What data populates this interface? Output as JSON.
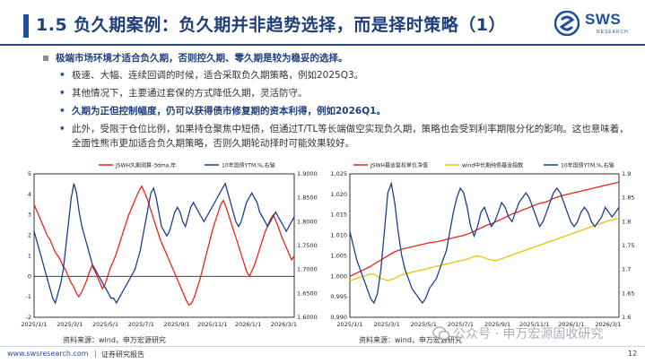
{
  "header": {
    "title": "1.5 负久期案例：负久期并非趋势选择，而是择时策略（1）",
    "logo_text": "SWS",
    "logo_sub": "RESEARCH"
  },
  "bullets": {
    "main": "极端市场环境才适合负久期，否则控久期、零久期是较为稳妥的选择。",
    "sub1": "极速、大幅、连续回调的时候，适合采取负久期策略，例如2025Q3。",
    "sub2": "其他情况下，主要通过套保的方式降低久期，灵活防守。",
    "sub3": "久期为正但控制幅度，仍可以获得债市修复期的资本利得，例如2026Q1。",
    "sub4": "此外，受限于仓位比例，如果持仓聚焦中短债，但通过T/TL等长端做空实现负久期，策略也会受到利率期限分化的影响。这也意味着，全面性熊市更加适合负久期策略，否则久期轮动择时可能效果较好。"
  },
  "chart_left": {
    "source": "资料来源：wind，申万宏源研究",
    "chart_data": {
      "type": "line",
      "title": "",
      "legend": [
        "JSWH久期测算-3dma,年",
        "10年国债YTM,%,右轴"
      ],
      "legend_placement": "top",
      "x_ticks": [
        "2025/1/1",
        "2025/3/1",
        "2025/5/1",
        "2025/7/1",
        "2025/9/1",
        "2025/11/1",
        "2026/1/1",
        "2026/3/1"
      ],
      "y_left": {
        "ticks": [
          "-2",
          "-1",
          "0",
          "1",
          "2",
          "3",
          "4",
          "5"
        ],
        "lim": [
          -2,
          5
        ]
      },
      "y_right": {
        "ticks": [
          "1.6000",
          "1.6500",
          "1.7000",
          "1.7500",
          "1.8000",
          "1.8500",
          "1.9000"
        ],
        "lim": [
          1.6,
          1.9
        ]
      },
      "series": [
        {
          "name": "JSWH久期测算-3dma,年",
          "axis": "left",
          "color": "#e8261c",
          "values": [
            3.5,
            3.2,
            2.9,
            2.6,
            2.3,
            2.0,
            1.8,
            1.5,
            1.2,
            1.0,
            0.8,
            0.5,
            0.3,
            0.0,
            -0.3,
            -0.5,
            -0.8,
            -1.0,
            -0.8,
            -0.5,
            -0.2,
            0.2,
            0.5,
            0.3,
            0.0,
            -0.3,
            -0.6,
            -0.4,
            0.0,
            0.4,
            0.7,
            1.0,
            1.4,
            1.8,
            2.2,
            2.6,
            3.0,
            3.3,
            3.6,
            3.9,
            4.2,
            4.4,
            4.1,
            3.8,
            3.4,
            3.0,
            2.6,
            2.2,
            1.8,
            1.5,
            1.2,
            0.9,
            0.6,
            0.3,
            0.0,
            -0.3,
            -0.6,
            -0.9,
            -1.2,
            -1.4,
            -1.3,
            -1.0,
            -0.6,
            -0.2,
            0.3,
            0.8,
            1.3,
            1.8,
            2.3,
            2.7,
            3.1,
            3.5,
            3.7,
            3.4,
            3.0,
            2.6,
            2.2,
            1.8,
            1.4,
            1.0,
            0.6,
            0.2,
            0.0,
            0.3,
            0.6,
            1.0,
            1.4,
            1.8,
            2.2,
            2.5,
            2.8,
            3.0,
            2.7,
            2.4,
            2.0,
            1.7,
            1.4,
            1.1,
            0.8,
            1.0
          ]
        },
        {
          "name": "10年国债YTM,%,右轴",
          "axis": "right",
          "color": "#1f3f8c",
          "values": [
            1.78,
            1.76,
            1.74,
            1.72,
            1.7,
            1.68,
            1.66,
            1.64,
            1.63,
            1.65,
            1.67,
            1.7,
            1.75,
            1.8,
            1.85,
            1.88,
            1.86,
            1.82,
            1.79,
            1.77,
            1.75,
            1.73,
            1.71,
            1.7,
            1.69,
            1.68,
            1.67,
            1.66,
            1.65,
            1.64,
            1.64,
            1.63,
            1.64,
            1.65,
            1.66,
            1.67,
            1.68,
            1.69,
            1.7,
            1.72,
            1.74,
            1.77,
            1.8,
            1.83,
            1.86,
            1.87,
            1.85,
            1.82,
            1.79,
            1.78,
            1.77,
            1.78,
            1.8,
            1.82,
            1.83,
            1.82,
            1.8,
            1.79,
            1.81,
            1.83,
            1.84,
            1.83,
            1.82,
            1.81,
            1.8,
            1.81,
            1.82,
            1.83,
            1.84,
            1.85,
            1.86,
            1.87,
            1.88,
            1.86,
            1.84,
            1.82,
            1.8,
            1.79,
            1.8,
            1.82,
            1.84,
            1.85,
            1.86,
            1.85,
            1.84,
            1.82,
            1.81,
            1.8,
            1.79,
            1.8,
            1.81,
            1.82,
            1.81,
            1.8,
            1.79,
            1.78,
            1.79,
            1.8,
            1.81
          ]
        }
      ]
    }
  },
  "chart_right": {
    "source": "资料来源：wind，申万宏源研究",
    "chart_data": {
      "type": "line",
      "title": "",
      "legend": [
        "JSWH基金复权单位净值",
        "wind中长期纯债基金指数",
        "10年国债YTM,%,右轴"
      ],
      "legend_placement": "top",
      "x_ticks": [
        "2025/1/1",
        "2025/3/1",
        "2025/5/1",
        "2025/7/1",
        "2025/9/1",
        "2025/11/1",
        "2026/1/1",
        "2026/3/1"
      ],
      "y_left": {
        "ticks": [
          "0.990",
          "0.995",
          "1.000",
          "1.005",
          "1.010",
          "1.015",
          "1.020",
          "1.025"
        ],
        "lim": [
          0.99,
          1.025
        ]
      },
      "y_right": {
        "ticks": [
          "1.6",
          "1.65",
          "1.7",
          "1.75",
          "1.8",
          "1.85",
          "1.9"
        ],
        "lim": [
          1.6,
          1.9
        ]
      },
      "series": [
        {
          "name": "JSWH基金复权单位净值",
          "axis": "left",
          "color": "#e8261c",
          "values": [
            1.0,
            1.0004,
            1.0008,
            1.0012,
            1.0016,
            1.002,
            1.0024,
            1.003,
            1.0035,
            1.004,
            1.0045,
            1.005,
            1.0055,
            1.006,
            1.0063,
            1.0066,
            1.0068,
            1.007,
            1.0072,
            1.0074,
            1.0076,
            1.0078,
            1.008,
            1.0082,
            1.0083,
            1.0084,
            1.0086,
            1.0088,
            1.009,
            1.0092,
            1.0094,
            1.0096,
            1.0098,
            1.01,
            1.0103,
            1.0106,
            1.011,
            1.0114,
            1.0118,
            1.0122,
            1.0126,
            1.0128,
            1.0132,
            1.0136,
            1.014,
            1.0144,
            1.0148,
            1.0152,
            1.0155,
            1.0158,
            1.0162,
            1.0165,
            1.0168,
            1.0172,
            1.0175,
            1.0178,
            1.018,
            1.0182,
            1.0186,
            1.019,
            1.0193,
            1.0196,
            1.0198,
            1.02,
            1.0202,
            1.0204,
            1.0206,
            1.0208,
            1.021,
            1.0212,
            1.0214,
            1.0216,
            1.0218,
            1.022,
            1.0222,
            1.0224,
            1.0226,
            1.0228,
            1.023
          ]
        },
        {
          "name": "wind中长期纯债基金指数",
          "axis": "left",
          "color": "#f5c000",
          "values": [
            0.999,
            0.9992,
            0.9995,
            0.9998,
            1.0,
            1.0003,
            1.0006,
            1.0005,
            1.0,
            0.9995,
            0.9992,
            0.999,
            0.9992,
            0.9995,
            1.0,
            1.0003,
            1.0006,
            1.0008,
            1.001,
            1.0012,
            1.0014,
            1.0016,
            1.0018,
            1.002,
            1.0022,
            1.0024,
            1.0026,
            1.0028,
            1.003,
            1.0032,
            1.0034,
            1.0036,
            1.0038,
            1.004,
            1.0042,
            1.0045,
            1.0048,
            1.005,
            1.0048,
            1.0045,
            1.0042,
            1.004,
            1.0038,
            1.004,
            1.0043,
            1.0046,
            1.0049,
            1.0052,
            1.0055,
            1.0058,
            1.0061,
            1.0064,
            1.0067,
            1.007,
            1.0073,
            1.0076,
            1.0079,
            1.0082,
            1.0085,
            1.0088,
            1.0091,
            1.0094,
            1.0097,
            1.01,
            1.0103,
            1.0106,
            1.0109,
            1.0112,
            1.0115,
            1.0118,
            1.0121,
            1.0124,
            1.0127,
            1.013,
            1.0133,
            1.0136,
            1.0138,
            1.014,
            1.0142
          ]
        },
        {
          "name": "10年国债YTM,%,右轴",
          "axis": "right",
          "color": "#1f3f8c",
          "values": [
            1.78,
            1.75,
            1.72,
            1.7,
            1.68,
            1.66,
            1.64,
            1.63,
            1.65,
            1.7,
            1.78,
            1.86,
            1.88,
            1.84,
            1.78,
            1.73,
            1.7,
            1.68,
            1.66,
            1.65,
            1.64,
            1.63,
            1.64,
            1.66,
            1.67,
            1.68,
            1.7,
            1.72,
            1.74,
            1.78,
            1.82,
            1.85,
            1.87,
            1.86,
            1.83,
            1.79,
            1.77,
            1.79,
            1.82,
            1.83,
            1.81,
            1.79,
            1.8,
            1.82,
            1.84,
            1.83,
            1.81,
            1.8,
            1.82,
            1.84,
            1.85,
            1.86,
            1.85,
            1.83,
            1.81,
            1.79,
            1.8,
            1.82,
            1.84,
            1.86,
            1.87,
            1.86,
            1.84,
            1.82,
            1.8,
            1.79,
            1.8,
            1.82,
            1.83,
            1.82,
            1.8,
            1.79,
            1.8,
            1.81,
            1.83,
            1.82,
            1.81,
            1.82,
            1.83
          ]
        }
      ]
    }
  },
  "footer": {
    "url": "www.swsresearch.com",
    "note": "证券研究报告",
    "page": "12",
    "watermark": "公众号 · 申万宏源固收研究"
  },
  "colors": {
    "accent": "#1f4e9c",
    "red": "#e8261c",
    "navy": "#1f3f8c",
    "yellow": "#f5c000"
  }
}
